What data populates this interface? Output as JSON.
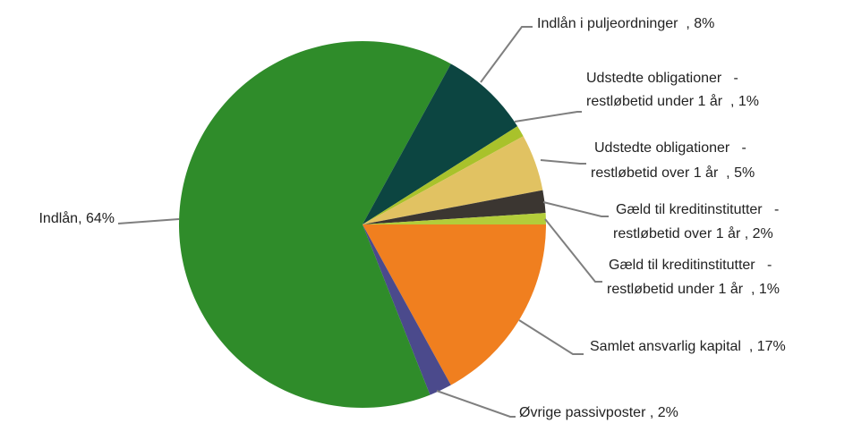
{
  "chart_data": {
    "type": "pie",
    "categories": [
      [
        "Samlet ansvarlig kapital"
      ],
      [
        "Øvrige passivposter"
      ],
      [
        "Indlån"
      ],
      [
        "Indlån i puljeordninger"
      ],
      [
        "Udstedte obligationer   -",
        "restløbetid under 1 år"
      ],
      [
        "Udstedte obligationer   -",
        "restløbetid over 1 år"
      ],
      [
        "Gæld til kreditinstitutter   -",
        "restløbetid over 1 år"
      ],
      [
        "Gæld til kreditinstitutter   -",
        "restløbetid under 1 år"
      ]
    ],
    "values": [
      17,
      2,
      64,
      8,
      1,
      5,
      2,
      1
    ],
    "value_labels": [
      "  , 17%",
      " , 2%",
      ", 64%",
      "  , 8%",
      "  , 1%",
      "  , 5%",
      " , 2%",
      "  , 1%"
    ],
    "colors": [
      "#f07f1f",
      "#4b4a8c",
      "#2f8c2a",
      "#0c4541",
      "#a9c22b",
      "#e1c262",
      "#3b3631",
      "#b3cd3a"
    ]
  }
}
